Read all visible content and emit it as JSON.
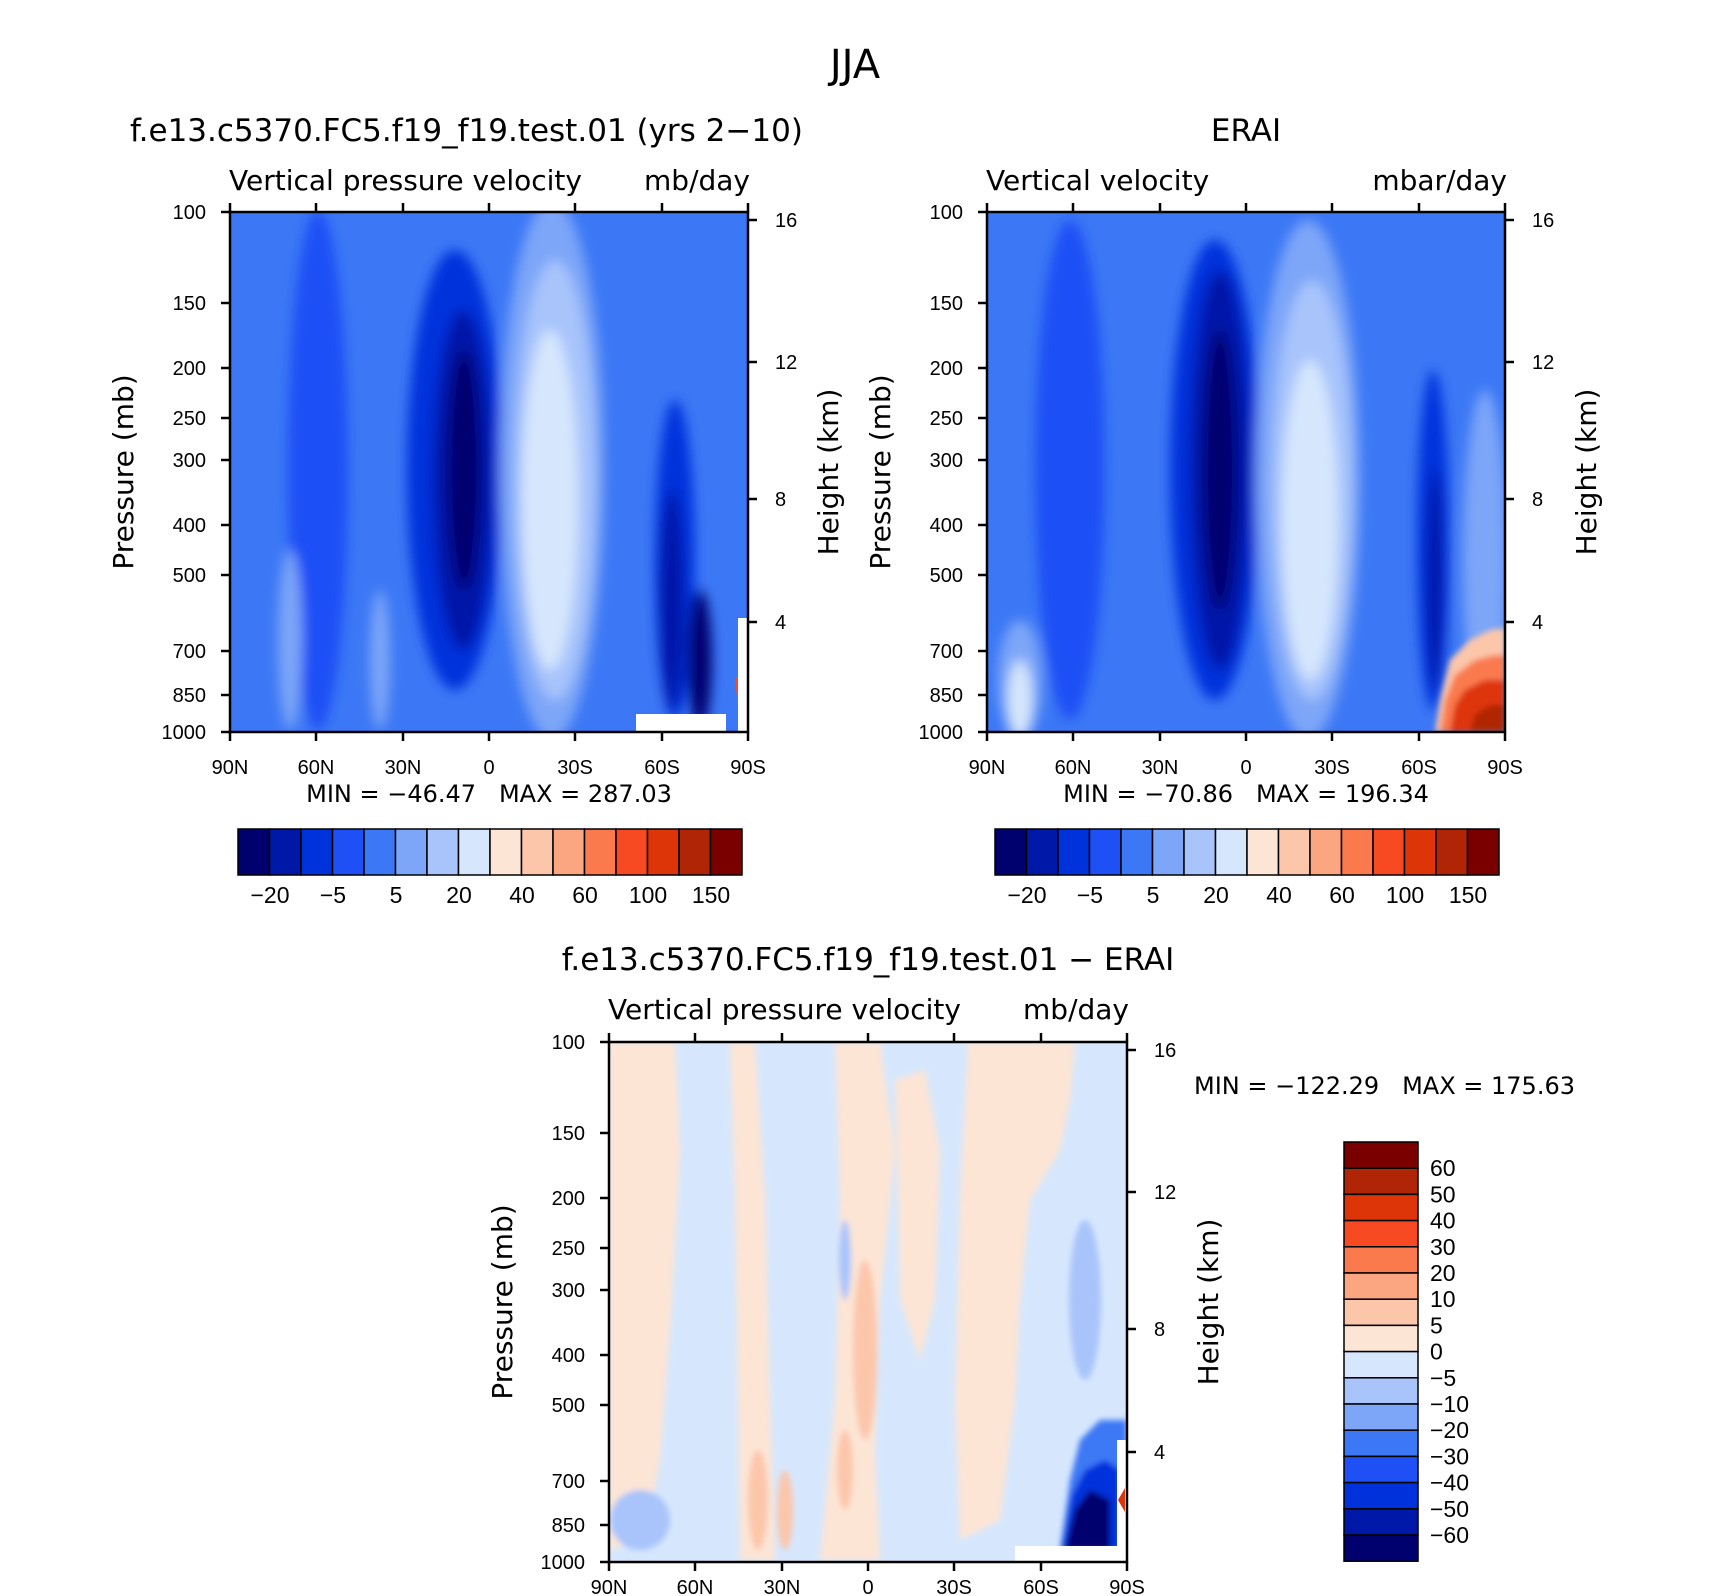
{
  "figure_title": "JJA",
  "colors": {
    "blue_scale": [
      "#00006e",
      "#0018a8",
      "#0032dc",
      "#1e50f5",
      "#3c78f5",
      "#7da6f8",
      "#a8c4fb",
      "#d6e7fd"
    ],
    "red_scale": [
      "#fde5d5",
      "#fcc6aa",
      "#fba680",
      "#fa7a4e",
      "#f74a22",
      "#de3508",
      "#b02505",
      "#7a0000"
    ],
    "diff_scale": [
      "#fde5d5",
      "#fcc6aa",
      "#fba680",
      "#fa7a4e",
      "#f74a22",
      "#de3508",
      "#b02505",
      "#7a0000"
    ],
    "diff_blue": [
      "#d6e7fd",
      "#a8c4fb",
      "#7da6f8",
      "#3c78f5",
      "#1e50f5",
      "#0032dc",
      "#0018a8",
      "#00006e"
    ]
  },
  "chart_data": [
    {
      "type": "heatmap",
      "title": "f.e13.c5370.FC5.f19_f19.test.01 (yrs 2−10)",
      "left_string": "Vertical pressure velocity",
      "right_string": "mb/day",
      "xlabel": "",
      "ylabel": "Pressure (mb)",
      "y2label": "Height (km)",
      "x_ticks": [
        "90N",
        "60N",
        "30N",
        "0",
        "30S",
        "60S",
        "90S"
      ],
      "y_ticks": [
        "100",
        "150",
        "200",
        "250",
        "300",
        "400",
        "500",
        "700",
        "850",
        "1000"
      ],
      "y2_ticks": [
        "16",
        "12",
        "8",
        "4"
      ],
      "stats": "MIN = −46.47   MAX = 287.03",
      "colorbar_labels": [
        "−20",
        "−5",
        "5",
        "20",
        "40",
        "60",
        "100",
        "150"
      ],
      "xlim": [
        90,
        -90
      ],
      "ylim": [
        1000,
        100
      ],
      "y_scale": "log",
      "features": [
        {
          "lat": 5,
          "p_top": 150,
          "p_bottom": 950,
          "value": -20
        },
        {
          "lat": -25,
          "p_top": 150,
          "p_bottom": 950,
          "value": 20
        },
        {
          "lat": -70,
          "p_top": 300,
          "p_bottom": 1000,
          "value": -20
        },
        {
          "lat": -82,
          "p_top": 750,
          "p_bottom": 1000,
          "value": 100
        }
      ]
    },
    {
      "type": "heatmap",
      "title": "ERAI",
      "left_string": "Vertical velocity",
      "right_string": "mbar/day",
      "xlabel": "",
      "ylabel": "Pressure (mb)",
      "y2label": "Height (km)",
      "x_ticks": [
        "90N",
        "60N",
        "30N",
        "0",
        "30S",
        "60S",
        "90S"
      ],
      "y_ticks": [
        "100",
        "150",
        "200",
        "250",
        "300",
        "400",
        "500",
        "700",
        "850",
        "1000"
      ],
      "y2_ticks": [
        "16",
        "12",
        "8",
        "4"
      ],
      "stats": "MIN = −70.86   MAX = 196.34",
      "colorbar_labels": [
        "−20",
        "−5",
        "5",
        "20",
        "40",
        "60",
        "100",
        "150"
      ],
      "xlim": [
        90,
        -90
      ],
      "ylim": [
        1000,
        100
      ],
      "y_scale": "log",
      "features": [
        {
          "lat": 8,
          "p_top": 150,
          "p_bottom": 950,
          "value": -20
        },
        {
          "lat": -22,
          "p_top": 150,
          "p_bottom": 950,
          "value": 20
        },
        {
          "lat": -65,
          "p_top": 250,
          "p_bottom": 1000,
          "value": -20
        },
        {
          "lat": -80,
          "p_top": 650,
          "p_bottom": 1000,
          "value": 100
        }
      ]
    },
    {
      "type": "heatmap",
      "title": "f.e13.c5370.FC5.f19_f19.test.01 − ERAI",
      "left_string": "Vertical pressure velocity",
      "right_string": "mb/day",
      "xlabel": "",
      "ylabel": "Pressure (mb)",
      "y2label": "Height (km)",
      "x_ticks": [
        "90N",
        "60N",
        "30N",
        "0",
        "30S",
        "60S",
        "90S"
      ],
      "y_ticks": [
        "100",
        "150",
        "200",
        "250",
        "300",
        "400",
        "500",
        "700",
        "850",
        "1000"
      ],
      "y2_ticks": [
        "16",
        "12",
        "8",
        "4"
      ],
      "stats": "MIN = −122.29   MAX = 175.63",
      "colorbar_labels": [
        "60",
        "50",
        "40",
        "30",
        "20",
        "10",
        "5",
        "0",
        "−5",
        "−10",
        "−20",
        "−30",
        "−40",
        "−50",
        "−60"
      ],
      "xlim": [
        90,
        -90
      ],
      "ylim": [
        1000,
        100
      ],
      "y_scale": "log",
      "features": [
        {
          "lat": -75,
          "p_top": 700,
          "p_bottom": 1000,
          "value": -60
        }
      ]
    }
  ]
}
